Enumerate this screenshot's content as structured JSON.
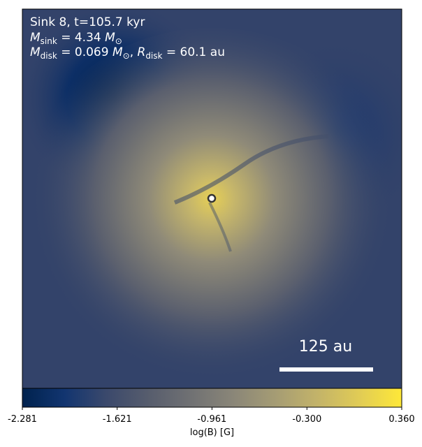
{
  "chart_data": {
    "type": "image",
    "annotation": {
      "line1": "Sink 8, t=105.7 kyr",
      "line2": [
        "M",
        "sink",
        " = 4.34 ",
        "M",
        "⊙"
      ],
      "line3": [
        "M",
        "disk",
        " = 0.069 ",
        "M",
        "⊙",
        ", ",
        "R",
        "disk",
        " = 60.1 au"
      ]
    },
    "scale_bar_label": "125 au",
    "colorbar": {
      "label": "log(B) [G]",
      "clim": [
        -2.281,
        0.36
      ],
      "ticks": [
        -2.281,
        -1.621,
        -0.961,
        {
          "value": -0.3,
          "label": "-0.300"
        },
        {
          "value": 0.36,
          "label": "0.360"
        }
      ],
      "colormap": [
        "#00224e",
        "#123570",
        "#3b496c",
        "#575d6d",
        "#707173",
        "#8a8678",
        "#a59c74",
        "#c3b369",
        "#e1cc55",
        "#fee838"
      ]
    }
  }
}
